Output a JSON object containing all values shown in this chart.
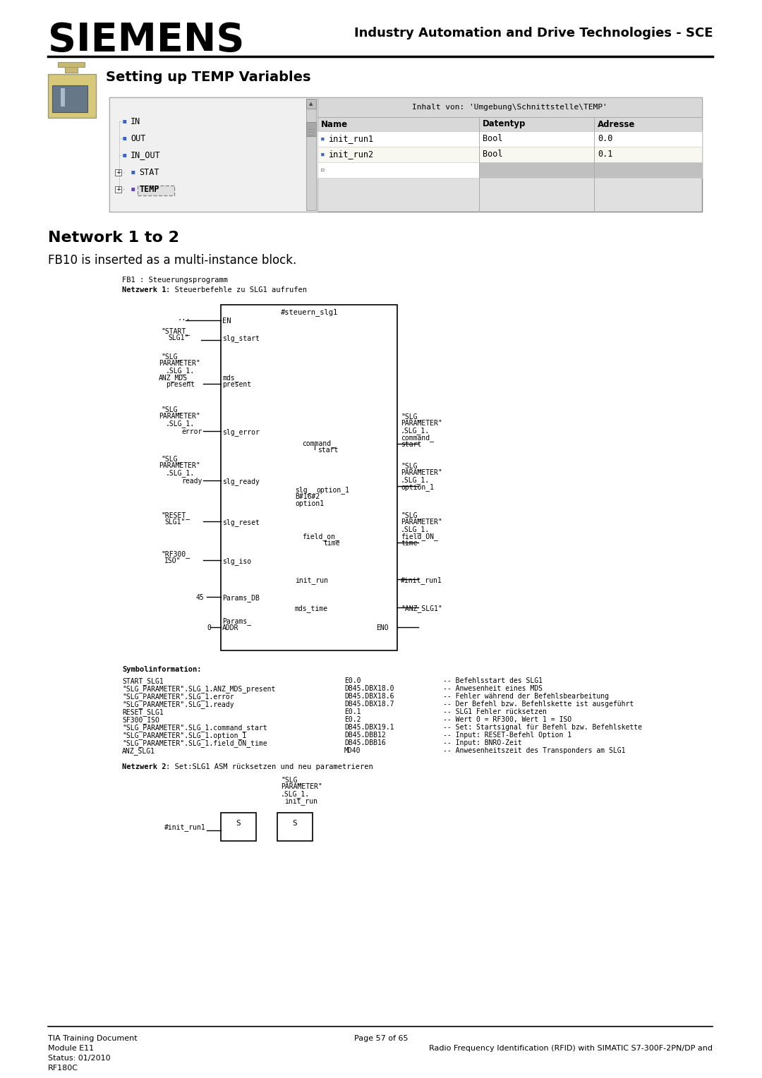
{
  "title_siemens": "SIEMENS",
  "title_right": "Industry Automation and Drive Technologies - SCE",
  "section_title": "Setting up TEMP Variables",
  "network_title": "Network 1 to 2",
  "network_subtitle": "FB10 is inserted as a multi-instance block.",
  "footer_left": [
    "TIA Training Document",
    "Module E11",
    "Status: 01/2010",
    "RF180C"
  ],
  "footer_center": "Page 57 of 65",
  "footer_right": "Radio Frequency Identification (RFID) with SIMATIC S7-300F-2PN/DP and",
  "table_header_title": "Inhalt von: 'Umgebung\\Schnittstelle\\TEMP'",
  "table_headers": [
    "Name",
    "Datentyp",
    "Adresse"
  ],
  "table_rows": [
    [
      "init_run1",
      "Bool",
      "0.0"
    ],
    [
      "init_run2",
      "Bool",
      "0.1"
    ]
  ],
  "tree_items": [
    "IN",
    "OUT",
    "IN_OUT",
    "STAT",
    "TEMP"
  ],
  "bg_color": "#ffffff",
  "symbol_info_lines": [
    [
      "START_SLG1",
      "E0.0",
      "-- Befehlsstart des SLG1"
    ],
    [
      "\"SLG_PARAMETER\".SLG_1.ANZ_MDS_present",
      "DB45.DBX18.0",
      "-- Anwesenheit eines MDS"
    ],
    [
      "\"SLG_PARAMETER\".SLG_1.error",
      "DB45.DBX18.6",
      "-- Fehler während der Befehlsbearbeitung"
    ],
    [
      "\"SLG_PARAMETER\".SLG_1.ready",
      "DB45.DBX18.7",
      "-- Der Befehl bzw. Befehlskette ist ausgeführt"
    ],
    [
      "RESET_SLG1",
      "E0.1",
      "-- SLG1 Fehler rücksetzen"
    ],
    [
      "SF300_ISO",
      "E0.2",
      "-- Wert 0 = RF300, Wert 1 = ISO"
    ],
    [
      "\"SLG_PARAMETER\".SLG_1.command_start",
      "DB45.DBX19.1",
      "-- Set: Startsignal für Befehl bzw. Befehlskette"
    ],
    [
      "\"SLG_PARAMETER\".SLG_1.option_1",
      "DB45.DBB12",
      "-- Input: RESET-Befehl Option 1"
    ],
    [
      "\"SLG_PARAMETER\".SLG_1.field_ON_time",
      "DB45.DBB16",
      "-- Input: BNRO-Zeit"
    ],
    [
      "ANZ_SLG1",
      "MD40",
      "-- Anwesenheitszeit des Transponders am SLG1"
    ]
  ]
}
